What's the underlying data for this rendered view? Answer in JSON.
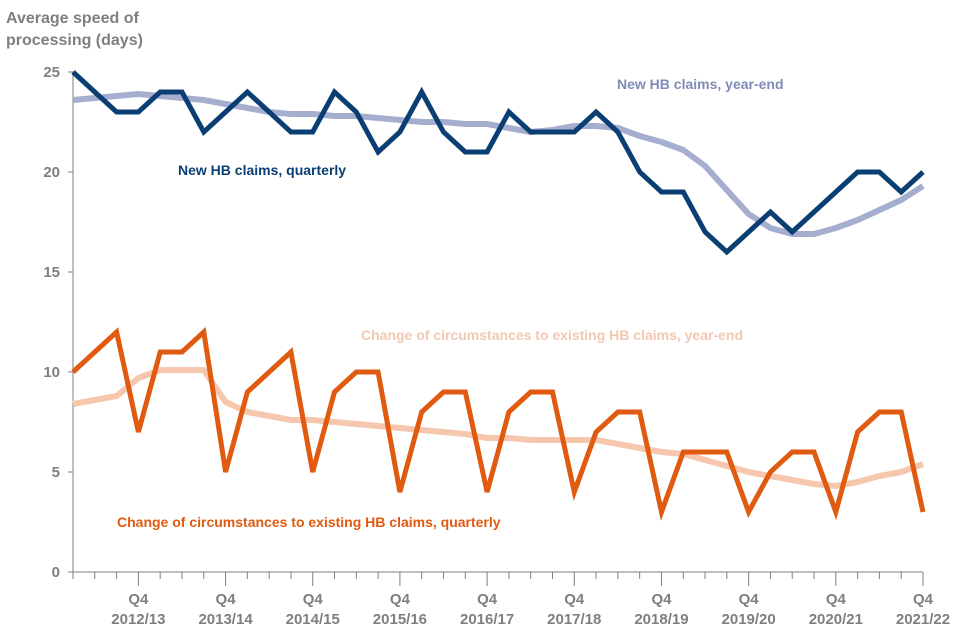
{
  "chart_data": {
    "type": "line",
    "title": "",
    "ylabel": "Average speed of processing (days)",
    "ylabel_lines": [
      "Average speed of",
      "processing (days)"
    ],
    "xlabel": "",
    "ylim": [
      0,
      25
    ],
    "yticks": [
      0,
      5,
      10,
      15,
      20,
      25
    ],
    "grid": false,
    "x_period_count": 40,
    "x_period_start": "Q1 2012/13",
    "x_period_end": "Q4 2021/22",
    "xtick_labels": [
      {
        "index": 3,
        "q": "Q4",
        "year": "2012/13"
      },
      {
        "index": 7,
        "q": "Q4",
        "year": "2013/14"
      },
      {
        "index": 11,
        "q": "Q4",
        "year": "2014/15"
      },
      {
        "index": 15,
        "q": "Q4",
        "year": "2015/16"
      },
      {
        "index": 19,
        "q": "Q4",
        "year": "2016/17"
      },
      {
        "index": 23,
        "q": "Q4",
        "year": "2017/18"
      },
      {
        "index": 27,
        "q": "Q4",
        "year": "2018/19"
      },
      {
        "index": 31,
        "q": "Q4",
        "year": "2019/20"
      },
      {
        "index": 35,
        "q": "Q4",
        "year": "2020/21"
      },
      {
        "index": 39,
        "q": "Q4",
        "year": "2021/22"
      }
    ],
    "series": [
      {
        "name": "New HB claims, year-end",
        "color": "#a5aecf",
        "values": [
          23.6,
          23.7,
          23.8,
          23.9,
          23.8,
          23.7,
          23.6,
          23.4,
          23.2,
          23.0,
          22.9,
          22.9,
          22.8,
          22.8,
          22.7,
          22.6,
          22.5,
          22.5,
          22.4,
          22.4,
          22.2,
          22.0,
          22.1,
          22.3,
          22.3,
          22.2,
          21.8,
          21.5,
          21.1,
          20.3,
          19.1,
          17.9,
          17.2,
          16.9,
          16.9,
          17.2,
          17.6,
          18.1,
          18.6,
          19.3
        ]
      },
      {
        "name": "New HB claims, quarterly",
        "color": "#0b3f73",
        "values": [
          25,
          24,
          23,
          23,
          24,
          24,
          22,
          23,
          24,
          23,
          22,
          22,
          24,
          23,
          21,
          22,
          24,
          22,
          21,
          21,
          23,
          22,
          22,
          22,
          23,
          22,
          20,
          19,
          19,
          17,
          16,
          17,
          18,
          17,
          18,
          19,
          20,
          20,
          19,
          20
        ]
      },
      {
        "name": "Change of circumstances to existing HB claims, year-end",
        "color": "#f6c7ad",
        "values": [
          8.4,
          8.6,
          8.8,
          9.7,
          10.1,
          10.1,
          10.1,
          8.5,
          8.0,
          7.8,
          7.6,
          7.6,
          7.5,
          7.4,
          7.3,
          7.2,
          7.1,
          7.0,
          6.9,
          6.7,
          6.7,
          6.6,
          6.6,
          6.6,
          6.6,
          6.4,
          6.2,
          6.0,
          5.9,
          5.6,
          5.3,
          5.0,
          4.8,
          4.6,
          4.4,
          4.3,
          4.5,
          4.8,
          5.0,
          5.4
        ]
      },
      {
        "name": "Change of circumstances to existing HB claims, quarterly",
        "color": "#e05a10",
        "values": [
          10,
          11,
          12,
          7,
          11,
          11,
          12,
          5,
          9,
          10,
          11,
          5,
          9,
          10,
          10,
          4,
          8,
          9,
          9,
          4,
          8,
          9,
          9,
          4,
          7,
          8,
          8,
          3,
          6,
          6,
          6,
          3,
          5,
          6,
          6,
          3,
          7,
          8,
          8,
          3
        ]
      }
    ],
    "annotations": [
      {
        "series": 0,
        "text": "New HB claims, year-end"
      },
      {
        "series": 1,
        "text": "New HB claims, quarterly"
      },
      {
        "series": 2,
        "text": "Change of circumstances to existing HB claims, year-end"
      },
      {
        "series": 3,
        "text": "Change of circumstances to existing HB claims, quarterly"
      }
    ],
    "axis_color": "#7f7f7f"
  }
}
